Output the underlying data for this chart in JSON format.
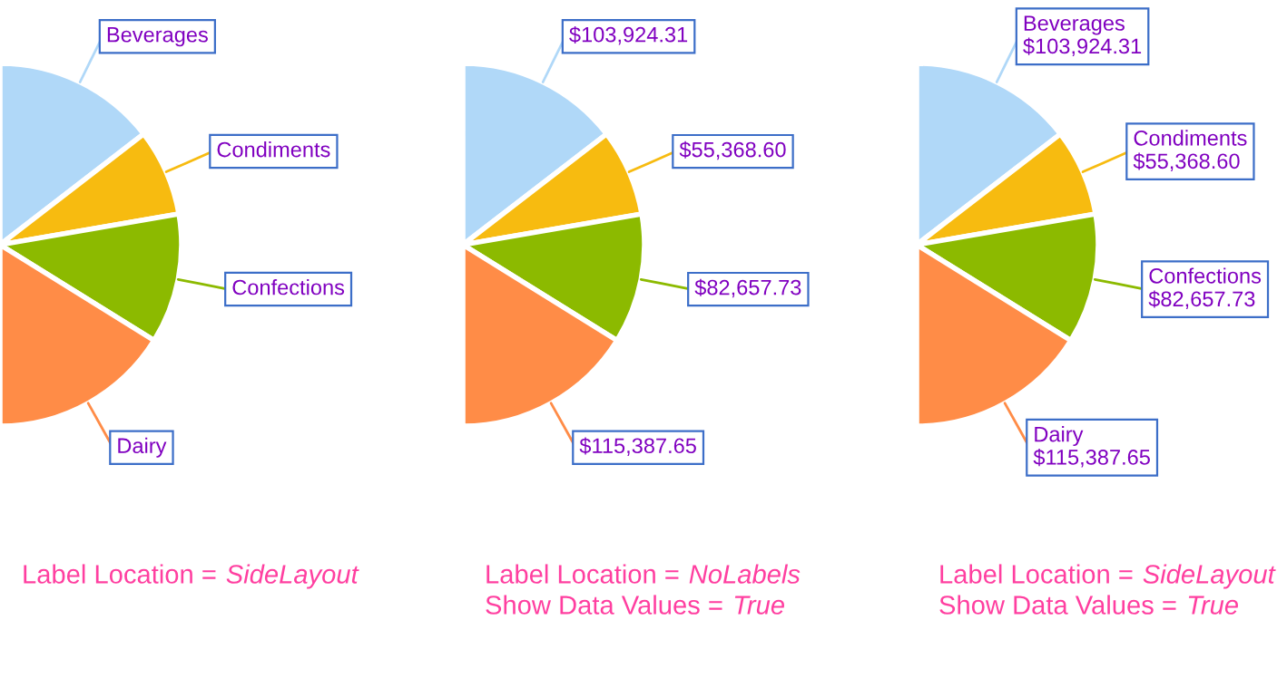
{
  "chart_data": [
    {
      "type": "pie",
      "categories": [
        "Beverages",
        "Condiments",
        "Confections",
        "Dairy"
      ],
      "values": [
        29.08,
        15.49,
        23.13,
        32.3
      ],
      "colors": [
        "#b0d8f8",
        "#f7bb10",
        "#8cba00",
        "#ff8c47"
      ],
      "annotations": [
        "Label Location = SideLayout"
      ]
    },
    {
      "type": "pie",
      "categories": [
        null,
        null,
        null,
        null
      ],
      "values": [
        103924.31,
        55368.6,
        82657.73,
        115387.65
      ],
      "colors": [
        "#b0d8f8",
        "#f7bb10",
        "#8cba00",
        "#ff8c47"
      ],
      "value_labels": [
        "$103,924.31",
        "$55,368.60",
        "$82,657.73",
        "$115,387.65"
      ],
      "annotations": [
        "Label Location = NoLabels",
        "Show Data Values = True"
      ]
    },
    {
      "type": "pie",
      "categories": [
        "Beverages",
        "Condiments",
        "Confections",
        "Dairy"
      ],
      "values": [
        103924.31,
        55368.6,
        82657.73,
        115387.65
      ],
      "colors": [
        "#b0d8f8",
        "#f7bb10",
        "#8cba00",
        "#ff8c47"
      ],
      "value_labels": [
        "$103,924.31",
        "$55,368.60",
        "$82,657.73",
        "$115,387.65"
      ],
      "annotations": [
        "Label Location = SideLayout",
        "Show Data Values = True"
      ]
    }
  ]
}
